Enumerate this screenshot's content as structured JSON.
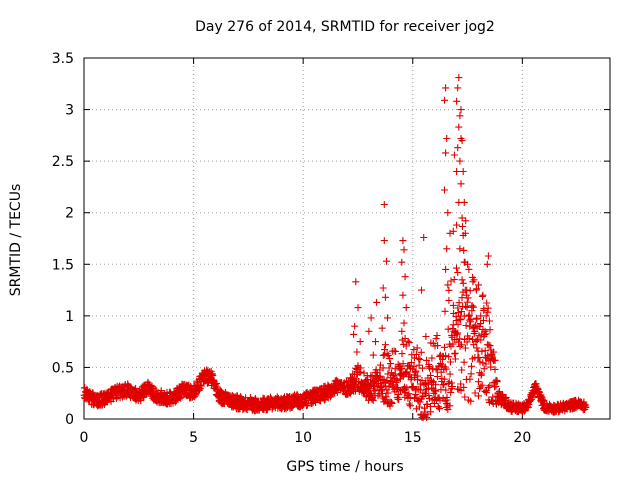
{
  "chart_data": {
    "type": "scatter",
    "title": "Day 276 of 2014, SRMTID for receiver jog2",
    "xlabel": "GPS time / hours",
    "ylabel": "SRMTID / TECUs",
    "xlim": [
      0,
      24
    ],
    "ylim": [
      0,
      3.5
    ],
    "grid": true,
    "marker": "+",
    "point_color": "#e00000",
    "x_ticks": [
      0,
      5,
      10,
      15,
      20
    ],
    "x_tick_labels": [
      "0",
      "5",
      "10",
      "15",
      "20"
    ],
    "y_ticks": [
      0,
      0.5,
      1,
      1.5,
      2,
      2.5,
      3,
      3.5
    ],
    "y_tick_labels": [
      "0",
      "0.5",
      "1",
      "1.5",
      "2",
      "2.5",
      "3",
      "3.5"
    ],
    "series": [
      {
        "name": "SRMTID",
        "baseline_profile": {
          "x": [
            0,
            0.5,
            1,
            1.5,
            2,
            2.5,
            2.9,
            3.3,
            4,
            4.5,
            5,
            5.5,
            5.8,
            6.2,
            7,
            8,
            9,
            10,
            11,
            11.5,
            12,
            12.5,
            13,
            13.5,
            14,
            14.5,
            15,
            15.5,
            16,
            16.5,
            17,
            17.2,
            17.5,
            18,
            18.5,
            19,
            19.5,
            20,
            20.3,
            20.6,
            21,
            21.5,
            22,
            22.5,
            22.9
          ],
          "y": [
            0.25,
            0.18,
            0.2,
            0.26,
            0.28,
            0.22,
            0.3,
            0.22,
            0.2,
            0.28,
            0.26,
            0.42,
            0.4,
            0.22,
            0.16,
            0.14,
            0.15,
            0.18,
            0.25,
            0.32,
            0.3,
            0.4,
            0.3,
            0.35,
            0.28,
            0.38,
            0.3,
            0.2,
            0.3,
            0.4,
            0.6,
            0.75,
            0.7,
            0.6,
            0.45,
            0.2,
            0.12,
            0.1,
            0.15,
            0.32,
            0.12,
            0.1,
            0.12,
            0.15,
            0.12
          ]
        },
        "spread_profile": {
          "x": [
            0,
            12,
            12.5,
            13.5,
            14,
            15,
            16,
            17,
            17.3,
            18,
            18.5,
            19,
            20,
            23
          ],
          "y": [
            0.06,
            0.07,
            0.12,
            0.15,
            0.18,
            0.2,
            0.22,
            0.45,
            0.6,
            0.4,
            0.3,
            0.06,
            0.04,
            0.04
          ]
        },
        "point_count": 1900,
        "spikes": [
          {
            "x": 12.4,
            "y": 1.33
          },
          {
            "x": 12.5,
            "y": 1.08
          },
          {
            "x": 12.35,
            "y": 0.9
          },
          {
            "x": 12.3,
            "y": 0.82
          },
          {
            "x": 12.6,
            "y": 0.75
          },
          {
            "x": 12.45,
            "y": 0.65
          },
          {
            "x": 13.1,
            "y": 0.98
          },
          {
            "x": 13.0,
            "y": 0.85
          },
          {
            "x": 13.3,
            "y": 0.75
          },
          {
            "x": 13.35,
            "y": 1.13
          },
          {
            "x": 13.2,
            "y": 0.62
          },
          {
            "x": 13.7,
            "y": 1.73
          },
          {
            "x": 13.8,
            "y": 1.53
          },
          {
            "x": 13.65,
            "y": 1.27
          },
          {
            "x": 13.75,
            "y": 1.18
          },
          {
            "x": 13.85,
            "y": 0.98
          },
          {
            "x": 13.6,
            "y": 0.88
          },
          {
            "x": 13.75,
            "y": 0.72
          },
          {
            "x": 13.7,
            "y": 2.08
          },
          {
            "x": 14.55,
            "y": 1.73
          },
          {
            "x": 14.6,
            "y": 1.64
          },
          {
            "x": 14.5,
            "y": 1.52
          },
          {
            "x": 14.65,
            "y": 1.38
          },
          {
            "x": 14.55,
            "y": 1.2
          },
          {
            "x": 14.7,
            "y": 1.08
          },
          {
            "x": 14.6,
            "y": 0.93
          },
          {
            "x": 14.5,
            "y": 0.85
          },
          {
            "x": 14.65,
            "y": 0.78
          },
          {
            "x": 15.5,
            "y": 1.76
          },
          {
            "x": 15.4,
            "y": 1.25
          },
          {
            "x": 15.6,
            "y": 0.8
          },
          {
            "x": 16.5,
            "y": 3.21
          },
          {
            "x": 16.45,
            "y": 3.09
          },
          {
            "x": 16.55,
            "y": 2.72
          },
          {
            "x": 16.5,
            "y": 2.58
          },
          {
            "x": 16.45,
            "y": 2.22
          },
          {
            "x": 16.6,
            "y": 2.0
          },
          {
            "x": 16.7,
            "y": 1.8
          },
          {
            "x": 16.55,
            "y": 1.65
          },
          {
            "x": 16.5,
            "y": 1.45
          },
          {
            "x": 16.6,
            "y": 1.3
          },
          {
            "x": 16.65,
            "y": 1.15
          },
          {
            "x": 16.9,
            "y": 2.56
          },
          {
            "x": 16.85,
            "y": 1.82
          },
          {
            "x": 17.1,
            "y": 3.31
          },
          {
            "x": 17.05,
            "y": 3.21
          },
          {
            "x": 17.0,
            "y": 3.08
          },
          {
            "x": 17.15,
            "y": 2.94
          },
          {
            "x": 17.1,
            "y": 2.83
          },
          {
            "x": 17.2,
            "y": 2.72
          },
          {
            "x": 17.05,
            "y": 2.63
          },
          {
            "x": 17.15,
            "y": 2.5
          },
          {
            "x": 17.0,
            "y": 2.4
          },
          {
            "x": 17.2,
            "y": 2.28
          },
          {
            "x": 17.1,
            "y": 2.1
          },
          {
            "x": 17.25,
            "y": 1.95
          },
          {
            "x": 17.0,
            "y": 1.88
          },
          {
            "x": 17.3,
            "y": 1.78
          },
          {
            "x": 17.15,
            "y": 1.65
          },
          {
            "x": 17.35,
            "y": 1.52
          },
          {
            "x": 17.05,
            "y": 1.42
          },
          {
            "x": 17.25,
            "y": 1.35
          },
          {
            "x": 17.4,
            "y": 1.25
          },
          {
            "x": 17.5,
            "y": 1.5
          },
          {
            "x": 17.45,
            "y": 1.2
          },
          {
            "x": 17.2,
            "y": 3.0
          },
          {
            "x": 17.25,
            "y": 2.7
          },
          {
            "x": 17.3,
            "y": 2.4
          },
          {
            "x": 17.35,
            "y": 2.1
          },
          {
            "x": 17.4,
            "y": 1.8
          },
          {
            "x": 17.8,
            "y": 1.35
          },
          {
            "x": 17.9,
            "y": 1.25
          },
          {
            "x": 18.0,
            "y": 1.3
          },
          {
            "x": 18.2,
            "y": 1.2
          },
          {
            "x": 18.4,
            "y": 1.5
          },
          {
            "x": 18.45,
            "y": 1.58
          },
          {
            "x": 18.35,
            "y": 1.0
          },
          {
            "x": 18.5,
            "y": 0.95
          },
          {
            "x": 18.3,
            "y": 0.85
          },
          {
            "x": 17.7,
            "y": 1.05
          },
          {
            "x": 18.1,
            "y": 1.0
          },
          {
            "x": 17.6,
            "y": 0.9
          }
        ]
      }
    ]
  }
}
